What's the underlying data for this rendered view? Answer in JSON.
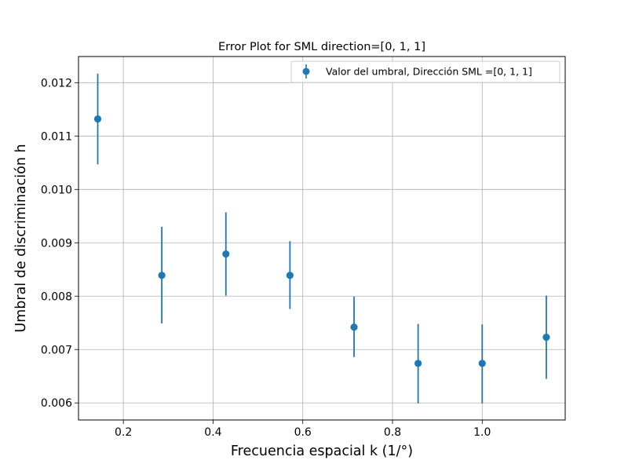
{
  "chart_data": {
    "type": "scatter",
    "title": "Error Plot for SML direction=[0, 1, 1]",
    "xlabel": "Frecuencia espacial k (1/°)",
    "ylabel": "Umbral de discriminación h",
    "xlim": [
      0.1,
      1.185
    ],
    "ylim": [
      0.00568,
      0.01249
    ],
    "x_ticks": [
      0.2,
      0.4,
      0.6,
      0.8,
      1.0
    ],
    "x_tick_labels": [
      "0.2",
      "0.4",
      "0.6",
      "0.8",
      "1.0"
    ],
    "y_ticks": [
      0.006,
      0.007,
      0.008,
      0.009,
      0.01,
      0.011,
      0.012
    ],
    "y_tick_labels": [
      "0.006",
      "0.007",
      "0.008",
      "0.009",
      "0.010",
      "0.011",
      "0.012"
    ],
    "grid": true,
    "legend_position": "top-right",
    "series": [
      {
        "name": "Valor del umbral, Dirección SML =[0, 1, 1]",
        "color": "#1f77b4",
        "marker": "circle",
        "points": [
          {
            "x": 0.1429,
            "y": 0.01132,
            "ylow": 0.01047,
            "yhigh": 0.01217
          },
          {
            "x": 0.2857,
            "y": 0.00839,
            "ylow": 0.00749,
            "yhigh": 0.0093
          },
          {
            "x": 0.4286,
            "y": 0.00879,
            "ylow": 0.00801,
            "yhigh": 0.00957
          },
          {
            "x": 0.5714,
            "y": 0.00839,
            "ylow": 0.00776,
            "yhigh": 0.00903
          },
          {
            "x": 0.7143,
            "y": 0.00742,
            "ylow": 0.00686,
            "yhigh": 0.00799
          },
          {
            "x": 0.8571,
            "y": 0.00674,
            "ylow": 0.00599,
            "yhigh": 0.00748
          },
          {
            "x": 1.0,
            "y": 0.00674,
            "ylow": 0.00599,
            "yhigh": 0.00747
          },
          {
            "x": 1.1429,
            "y": 0.00723,
            "ylow": 0.00645,
            "yhigh": 0.00801
          }
        ]
      }
    ]
  }
}
